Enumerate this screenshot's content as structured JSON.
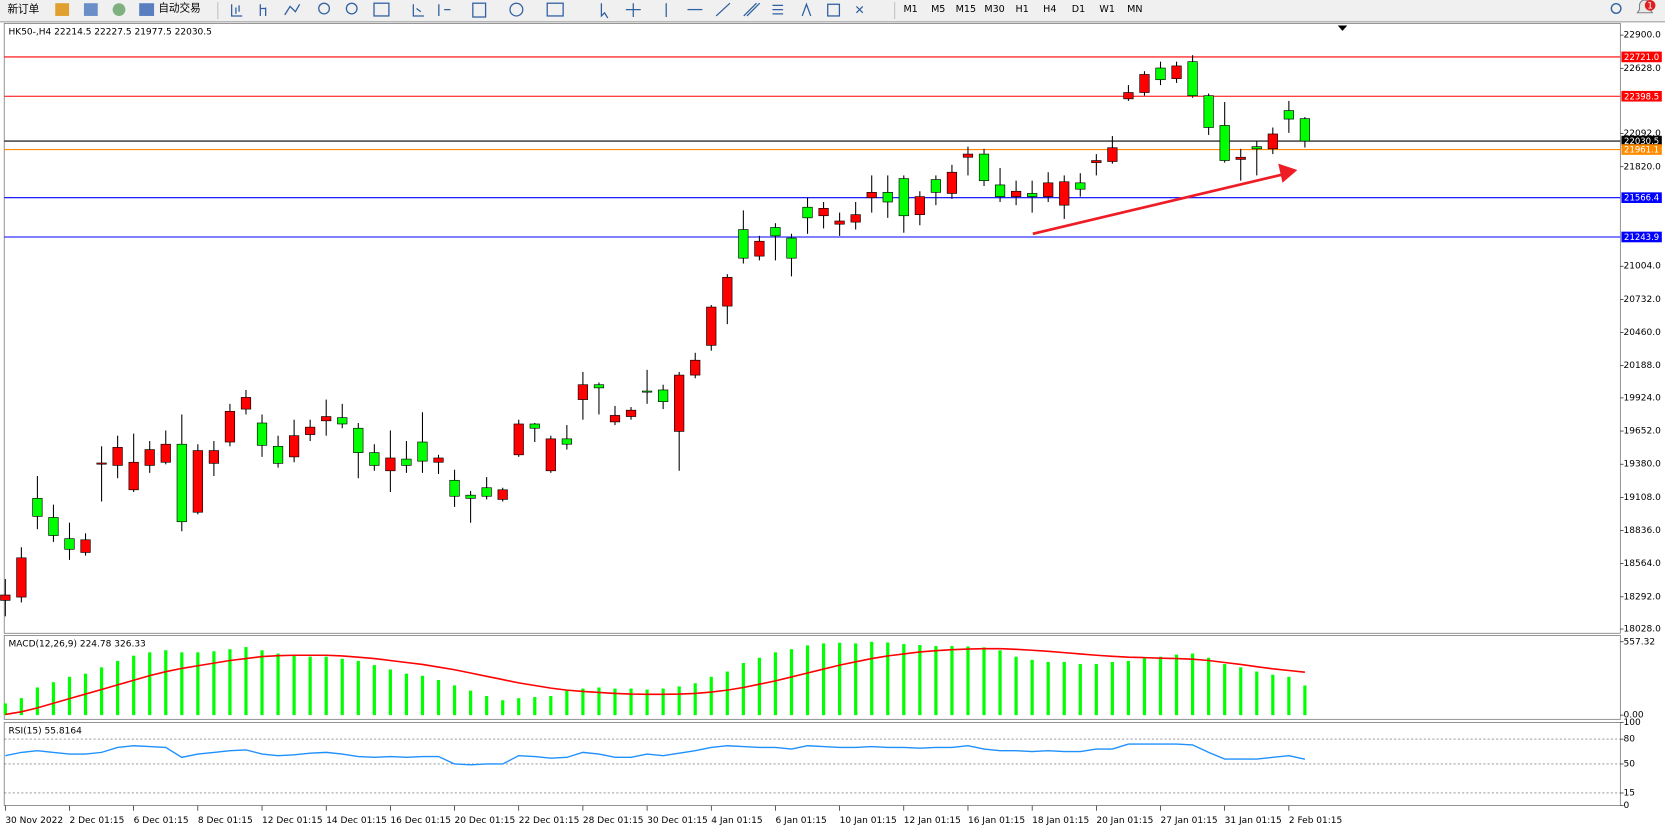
{
  "toolbar": {
    "new_order": "新订单",
    "auto_trading": "自动交易",
    "timeframes": [
      "M1",
      "M5",
      "M15",
      "M30",
      "H1",
      "H4",
      "D1",
      "W1",
      "MN"
    ],
    "notifications": "1"
  },
  "chart_data": [
    {
      "type": "candlestick",
      "title": "HK50-,H4  22214.5 22227.5 21977.5 22030.5",
      "categories": [
        "30 Nov 2022",
        null,
        null,
        null,
        "2 Dec 01:15",
        null,
        null,
        null,
        "6 Dec 01:15",
        null,
        null,
        null,
        "8 Dec 01:15",
        null,
        null,
        null,
        "12 Dec 01:15",
        null,
        null,
        null,
        "14 Dec 01:15",
        null,
        null,
        null,
        "16 Dec 01:15",
        null,
        null,
        null,
        "20 Dec 01:15",
        null,
        null,
        null,
        "22 Dec 01:15",
        null,
        null,
        null,
        "28 Dec 01:15",
        null,
        null,
        null,
        "30 Dec 01:15",
        null,
        null,
        null,
        "4 Jan 01:15",
        null,
        null,
        null,
        "6 Jan 01:15",
        null,
        null,
        null,
        "10 Jan 01:15",
        null,
        null,
        null,
        "12 Jan 01:15",
        null,
        null,
        null,
        "16 Jan 01:15",
        null,
        null,
        null,
        "18 Jan 01:15",
        null,
        null,
        null,
        "20 Jan 01:15",
        null,
        null,
        null,
        "27 Jan 01:15",
        null,
        null,
        null,
        "31 Jan 01:15",
        null,
        null,
        null,
        "2 Feb 01:15",
        null
      ],
      "open": [
        18263,
        18290,
        19100,
        18943,
        18769,
        18656,
        19380,
        19370,
        19170,
        19370,
        19396,
        19544,
        18986,
        19387,
        19562,
        19832,
        19718,
        19527,
        19440,
        19623,
        19736,
        19762,
        19675,
        19475,
        19326,
        19422,
        19562,
        19396,
        19248,
        19126,
        19187,
        19091,
        19457,
        19710,
        19326,
        19588,
        19910,
        20032,
        19727,
        19771,
        19980,
        19989,
        19649,
        20111,
        20355,
        20677,
        21305,
        21087,
        21322,
        21235,
        21488,
        21418,
        21349,
        21366,
        21566,
        21610,
        21723,
        21427,
        21715,
        21601,
        21898,
        21924,
        21671,
        21575,
        21601,
        21575,
        21505,
        21688,
        21854,
        21863,
        22377,
        22429,
        22630,
        22543,
        22682,
        22403,
        22159,
        21880,
        21985,
        21967,
        22281,
        22214.5
      ],
      "high": [
        18438,
        18699,
        19283,
        19048,
        18900,
        18813,
        19527,
        19614,
        19631,
        19570,
        19657,
        19788,
        19544,
        19570,
        19875,
        19989,
        19788,
        19614,
        19745,
        19745,
        19910,
        19875,
        19718,
        19544,
        19657,
        19570,
        19806,
        19457,
        19335,
        19161,
        19274,
        19187,
        19745,
        19718,
        19614,
        19701,
        20137,
        20050,
        19858,
        19849,
        20154,
        20032,
        20137,
        20294,
        20686,
        20939,
        21462,
        21253,
        21357,
        21270,
        21566,
        21531,
        21444,
        21531,
        21749,
        21749,
        21749,
        21619,
        21749,
        21836,
        21985,
        21967,
        21810,
        21706,
        21706,
        21775,
        21749,
        21767,
        21924,
        22072,
        22490,
        22604,
        22682,
        22682,
        22735,
        22421,
        22351,
        21967,
        22028,
        22142,
        22360,
        22227.5
      ],
      "low": [
        18132,
        18246,
        18847,
        18743,
        18595,
        18630,
        19074,
        19265,
        19152,
        19309,
        19379,
        18830,
        18969,
        19283,
        19527,
        19788,
        19440,
        19352,
        19396,
        19570,
        19614,
        19675,
        19265,
        19326,
        19152,
        19309,
        19309,
        19300,
        19030,
        18900,
        19091,
        19074,
        19440,
        19562,
        19309,
        19500,
        19745,
        19788,
        19701,
        19745,
        19875,
        19832,
        19326,
        20085,
        20311,
        20529,
        21026,
        21052,
        21052,
        20921,
        21270,
        21314,
        21253,
        21305,
        21444,
        21401,
        21279,
        21340,
        21505,
        21557,
        21749,
        21662,
        21531,
        21505,
        21444,
        21531,
        21392,
        21575,
        21749,
        21845,
        22360,
        22403,
        22490,
        22508,
        22386,
        22081,
        21854,
        21706,
        21749,
        21924,
        22098,
        21977.5
      ],
      "close": [
        18307,
        18612,
        18952,
        18795,
        18682,
        18760,
        19390,
        19518,
        19396,
        19500,
        19544,
        18908,
        19492,
        19492,
        19814,
        19928,
        19535,
        19387,
        19614,
        19684,
        19771,
        19710,
        19475,
        19370,
        19431,
        19370,
        19405,
        19431,
        19117,
        19100,
        19117,
        19170,
        19710,
        19675,
        19588,
        19544,
        20032,
        20006,
        19780,
        19823,
        19971,
        19893,
        20111,
        20233,
        20669,
        20913,
        21070,
        21209,
        21253,
        21070,
        21401,
        21479,
        21375,
        21427,
        21610,
        21531,
        21418,
        21575,
        21610,
        21775,
        21924,
        21706,
        21575,
        21619,
        21575,
        21688,
        21697,
        21636,
        21871,
        21976,
        22429,
        22577,
        22534,
        22647,
        22403,
        22142,
        21871,
        21898,
        21967,
        22089,
        22211,
        22030.5
      ],
      "up_color": "#ff0000",
      "down_color": "#00ff00",
      "ylim": [
        17993,
        22996
      ],
      "yticks": [
        {
          "value": 22900,
          "label": "22900.0"
        },
        {
          "value": 22628,
          "label": "22628.0"
        },
        {
          "value": 22092,
          "label": "22092.0"
        },
        {
          "value": 21820,
          "label": "21820.0"
        },
        {
          "value": 21004,
          "label": "21004.0"
        },
        {
          "value": 20732,
          "label": "20732.0"
        },
        {
          "value": 20460,
          "label": "20460.0"
        },
        {
          "value": 20188,
          "label": "20188.0"
        },
        {
          "value": 19924,
          "label": "19924.0"
        },
        {
          "value": 19652,
          "label": "19652.0"
        },
        {
          "value": 19380,
          "label": "19380.0"
        },
        {
          "value": 19108,
          "label": "19108.0"
        },
        {
          "value": 18836,
          "label": "18836.0"
        },
        {
          "value": 18564,
          "label": "18564.0"
        },
        {
          "value": 18292,
          "label": "18292.0"
        },
        {
          "value": 18028,
          "label": "18028.0"
        }
      ],
      "grid": false,
      "levels": [
        {
          "value": 22721,
          "label": "22721.0",
          "color": "#ff0000"
        },
        {
          "value": 22398.5,
          "label": "22398.5",
          "color": "#ff0000"
        },
        {
          "value": 22030.5,
          "label": "22030.5",
          "color": "#000000"
        },
        {
          "value": 21961.1,
          "label": "21961.1",
          "color": "#ff8c00"
        },
        {
          "value": 21566.4,
          "label": "21566.4",
          "color": "#0000ff"
        },
        {
          "value": 21243.9,
          "label": "21243.9",
          "color": "#0000ff"
        }
      ]
    },
    {
      "type": "macd",
      "title": "MACD(12,26,9) 224.78 326.33",
      "series": [
        {
          "color": "#00ff00",
          "values": [
            89,
            129,
            210,
            250,
            291,
            315,
            363,
            412,
            452,
            477,
            493,
            477,
            477,
            485,
            501,
            517,
            493,
            468,
            452,
            444,
            444,
            428,
            412,
            380,
            347,
            315,
            299,
            267,
            226,
            186,
            145,
            113,
            129,
            137,
            145,
            186,
            202,
            210,
            202,
            202,
            194,
            202,
            218,
            242,
            291,
            331,
            396,
            436,
            477,
            501,
            530,
            545,
            550,
            545,
            557,
            552,
            540,
            533,
            525,
            525,
            522,
            515,
            493,
            444,
            420,
            404,
            404,
            388,
            388,
            404,
            412,
            436,
            444,
            460,
            468,
            436,
            388,
            363,
            331,
            307,
            291,
            224.78
          ]
        },
        {
          "color": "#ff0000",
          "values": [
            5,
            25,
            55,
            90,
            125,
            160,
            195,
            230,
            265,
            300,
            330,
            355,
            375,
            395,
            415,
            430,
            445,
            452,
            455,
            455,
            455,
            450,
            440,
            430,
            415,
            400,
            385,
            365,
            345,
            320,
            295,
            270,
            245,
            225,
            205,
            190,
            180,
            172,
            165,
            160,
            158,
            158,
            160,
            165,
            175,
            190,
            210,
            235,
            260,
            290,
            320,
            350,
            380,
            405,
            430,
            450,
            465,
            480,
            490,
            497,
            502,
            505,
            505,
            500,
            493,
            485,
            475,
            465,
            455,
            447,
            440,
            437,
            433,
            430,
            425,
            415,
            400,
            385,
            368,
            352,
            339,
            326.33
          ]
        }
      ],
      "ylim": [
        -32.3,
        605.8
      ],
      "yticks": [
        557.32,
        {
          "value": 0,
          "label": "0.00"
        }
      ],
      "grid": false
    },
    {
      "type": "line",
      "title": "RSI(15) 55.8164",
      "series": [
        {
          "color": "#1e90ff",
          "values": [
            60,
            64,
            66,
            64,
            62,
            62,
            64,
            70,
            72,
            71,
            70,
            58,
            62,
            64,
            66,
            67,
            62,
            60,
            61,
            63,
            64,
            62,
            59,
            58,
            59,
            58,
            59,
            59,
            50,
            49,
            50,
            50,
            60,
            59,
            57,
            58,
            64,
            62,
            58,
            58,
            62,
            60,
            63,
            66,
            70,
            72,
            71,
            70,
            70,
            68,
            72,
            71,
            70,
            70,
            71,
            70,
            70,
            69,
            70,
            70,
            72,
            68,
            66,
            66,
            65,
            66,
            65,
            65,
            68,
            68,
            74,
            74,
            74,
            74,
            73,
            64,
            56,
            56,
            56,
            58,
            60,
            55.8164
          ]
        }
      ],
      "ylim": [
        0,
        100
      ],
      "yticks": [
        100,
        80,
        50,
        15,
        0
      ],
      "grid": true
    }
  ]
}
